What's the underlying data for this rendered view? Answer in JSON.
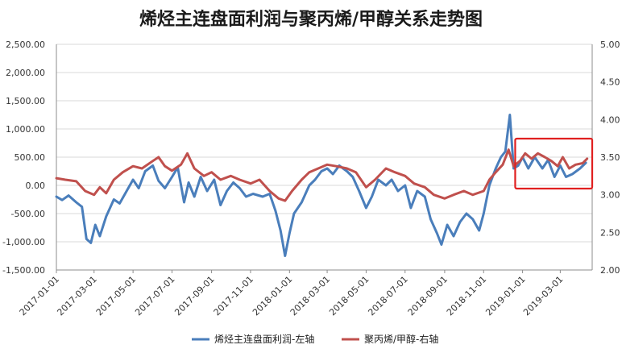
{
  "chart_data": {
    "type": "line",
    "title": "烯烃主连盘面利润与聚丙烯/甲醇关系走势图",
    "y_left": {
      "ylim": [
        -1500,
        2500
      ],
      "ticks": [
        "2,500.00",
        "2,000.00",
        "1,500.00",
        "1,000.00",
        "500.00",
        "0.00",
        "-500.00",
        "-1,000.00",
        "-1,500.00"
      ]
    },
    "y_right": {
      "ylim": [
        2.0,
        5.0
      ],
      "ticks": [
        "5.00",
        "4.50",
        "4.00",
        "3.50",
        "3.00",
        "2.50",
        "2.00"
      ]
    },
    "x_ticks": [
      "2017-01-01",
      "2017-03-01",
      "2017-05-01",
      "2017-07-01",
      "2017-09-01",
      "2017-11-01",
      "2018-01-01",
      "2018-03-01",
      "2018-05-01",
      "2018-07-01",
      "2018-09-01",
      "2018-11-01",
      "2019-01-01",
      "2019-03-01"
    ],
    "grid": true,
    "legend_position": "bottom",
    "series": [
      {
        "name": "烯烃主连盘面利润-左轴",
        "axis": "left",
        "color": "#4a7ebb",
        "points": [
          [
            "2017-01-01",
            -200
          ],
          [
            "2017-01-10",
            -260
          ],
          [
            "2017-01-20",
            -180
          ],
          [
            "2017-02-01",
            -300
          ],
          [
            "2017-02-10",
            -380
          ],
          [
            "2017-02-17",
            -950
          ],
          [
            "2017-02-24",
            -1020
          ],
          [
            "2017-03-03",
            -700
          ],
          [
            "2017-03-10",
            -900
          ],
          [
            "2017-03-20",
            -550
          ],
          [
            "2017-04-01",
            -250
          ],
          [
            "2017-04-10",
            -320
          ],
          [
            "2017-04-20",
            -120
          ],
          [
            "2017-05-01",
            100
          ],
          [
            "2017-05-10",
            -50
          ],
          [
            "2017-05-20",
            250
          ],
          [
            "2017-06-01",
            350
          ],
          [
            "2017-06-10",
            80
          ],
          [
            "2017-06-20",
            -50
          ],
          [
            "2017-07-01",
            150
          ],
          [
            "2017-07-10",
            320
          ],
          [
            "2017-07-20",
            -300
          ],
          [
            "2017-07-27",
            50
          ],
          [
            "2017-08-05",
            -200
          ],
          [
            "2017-08-15",
            150
          ],
          [
            "2017-08-25",
            -100
          ],
          [
            "2017-09-05",
            100
          ],
          [
            "2017-09-15",
            -350
          ],
          [
            "2017-09-25",
            -100
          ],
          [
            "2017-10-05",
            50
          ],
          [
            "2017-10-15",
            -50
          ],
          [
            "2017-10-25",
            -200
          ],
          [
            "2017-11-05",
            -150
          ],
          [
            "2017-11-20",
            -200
          ],
          [
            "2017-12-01",
            -150
          ],
          [
            "2017-12-10",
            -450
          ],
          [
            "2017-12-18",
            -800
          ],
          [
            "2017-12-25",
            -1250
          ],
          [
            "2018-01-01",
            -850
          ],
          [
            "2018-01-08",
            -500
          ],
          [
            "2018-01-20",
            -300
          ],
          [
            "2018-02-01",
            0
          ],
          [
            "2018-02-10",
            100
          ],
          [
            "2018-02-20",
            250
          ],
          [
            "2018-03-01",
            300
          ],
          [
            "2018-03-10",
            200
          ],
          [
            "2018-03-20",
            350
          ],
          [
            "2018-04-01",
            250
          ],
          [
            "2018-04-10",
            150
          ],
          [
            "2018-04-20",
            -100
          ],
          [
            "2018-05-01",
            -400
          ],
          [
            "2018-05-10",
            -200
          ],
          [
            "2018-05-20",
            100
          ],
          [
            "2018-06-01",
            0
          ],
          [
            "2018-06-10",
            100
          ],
          [
            "2018-06-20",
            -100
          ],
          [
            "2018-07-01",
            0
          ],
          [
            "2018-07-10",
            -400
          ],
          [
            "2018-07-20",
            -100
          ],
          [
            "2018-08-01",
            -200
          ],
          [
            "2018-08-10",
            -600
          ],
          [
            "2018-08-20",
            -850
          ],
          [
            "2018-08-27",
            -1050
          ],
          [
            "2018-09-05",
            -700
          ],
          [
            "2018-09-15",
            -900
          ],
          [
            "2018-09-25",
            -650
          ],
          [
            "2018-10-05",
            -500
          ],
          [
            "2018-10-15",
            -600
          ],
          [
            "2018-10-25",
            -800
          ],
          [
            "2018-11-01",
            -500
          ],
          [
            "2018-11-10",
            0
          ],
          [
            "2018-11-20",
            300
          ],
          [
            "2018-11-28",
            500
          ],
          [
            "2018-12-05",
            600
          ],
          [
            "2018-12-12",
            1250
          ],
          [
            "2018-12-18",
            300
          ],
          [
            "2018-12-25",
            350
          ],
          [
            "2019-01-01",
            500
          ],
          [
            "2019-01-10",
            300
          ],
          [
            "2019-01-20",
            500
          ],
          [
            "2019-02-01",
            300
          ],
          [
            "2019-02-10",
            450
          ],
          [
            "2019-02-20",
            150
          ],
          [
            "2019-03-01",
            350
          ],
          [
            "2019-03-10",
            150
          ],
          [
            "2019-03-20",
            200
          ],
          [
            "2019-04-01",
            300
          ],
          [
            "2019-04-10",
            400
          ]
        ]
      },
      {
        "name": "聚丙烯/甲醇-右轴",
        "axis": "right",
        "color": "#c0504d",
        "points": [
          [
            "2017-01-01",
            3.22
          ],
          [
            "2017-01-15",
            3.2
          ],
          [
            "2017-02-01",
            3.18
          ],
          [
            "2017-02-15",
            3.05
          ],
          [
            "2017-03-01",
            3.0
          ],
          [
            "2017-03-10",
            3.1
          ],
          [
            "2017-03-20",
            3.02
          ],
          [
            "2017-04-01",
            3.2
          ],
          [
            "2017-04-15",
            3.3
          ],
          [
            "2017-05-01",
            3.38
          ],
          [
            "2017-05-15",
            3.35
          ],
          [
            "2017-06-01",
            3.45
          ],
          [
            "2017-06-10",
            3.5
          ],
          [
            "2017-06-20",
            3.38
          ],
          [
            "2017-07-01",
            3.32
          ],
          [
            "2017-07-15",
            3.4
          ],
          [
            "2017-07-25",
            3.55
          ],
          [
            "2017-08-05",
            3.35
          ],
          [
            "2017-08-20",
            3.25
          ],
          [
            "2017-09-01",
            3.3
          ],
          [
            "2017-09-15",
            3.2
          ],
          [
            "2017-10-01",
            3.25
          ],
          [
            "2017-10-15",
            3.2
          ],
          [
            "2017-11-01",
            3.15
          ],
          [
            "2017-11-15",
            3.2
          ],
          [
            "2017-12-01",
            3.05
          ],
          [
            "2017-12-15",
            2.95
          ],
          [
            "2017-12-25",
            2.92
          ],
          [
            "2018-01-05",
            3.05
          ],
          [
            "2018-01-20",
            3.2
          ],
          [
            "2018-02-01",
            3.3
          ],
          [
            "2018-02-15",
            3.35
          ],
          [
            "2018-03-01",
            3.4
          ],
          [
            "2018-03-15",
            3.38
          ],
          [
            "2018-04-01",
            3.35
          ],
          [
            "2018-04-15",
            3.3
          ],
          [
            "2018-05-01",
            3.1
          ],
          [
            "2018-05-15",
            3.2
          ],
          [
            "2018-06-01",
            3.35
          ],
          [
            "2018-06-15",
            3.3
          ],
          [
            "2018-07-01",
            3.25
          ],
          [
            "2018-07-15",
            3.15
          ],
          [
            "2018-08-01",
            3.1
          ],
          [
            "2018-08-15",
            3.0
          ],
          [
            "2018-09-01",
            2.95
          ],
          [
            "2018-09-15",
            3.0
          ],
          [
            "2018-10-01",
            3.05
          ],
          [
            "2018-10-15",
            3.0
          ],
          [
            "2018-11-01",
            3.05
          ],
          [
            "2018-11-10",
            3.2
          ],
          [
            "2018-11-20",
            3.3
          ],
          [
            "2018-12-01",
            3.4
          ],
          [
            "2018-12-10",
            3.6
          ],
          [
            "2018-12-18",
            3.38
          ],
          [
            "2018-12-28",
            3.45
          ],
          [
            "2019-01-05",
            3.55
          ],
          [
            "2019-01-15",
            3.48
          ],
          [
            "2019-01-25",
            3.55
          ],
          [
            "2019-02-05",
            3.5
          ],
          [
            "2019-02-15",
            3.45
          ],
          [
            "2019-02-25",
            3.38
          ],
          [
            "2019-03-05",
            3.5
          ],
          [
            "2019-03-15",
            3.35
          ],
          [
            "2019-03-25",
            3.4
          ],
          [
            "2019-04-05",
            3.42
          ],
          [
            "2019-04-12",
            3.48
          ]
        ]
      }
    ],
    "highlight_box": {
      "from": "2018-12-28",
      "to": "2019-04-15",
      "color": "#e02020"
    }
  }
}
